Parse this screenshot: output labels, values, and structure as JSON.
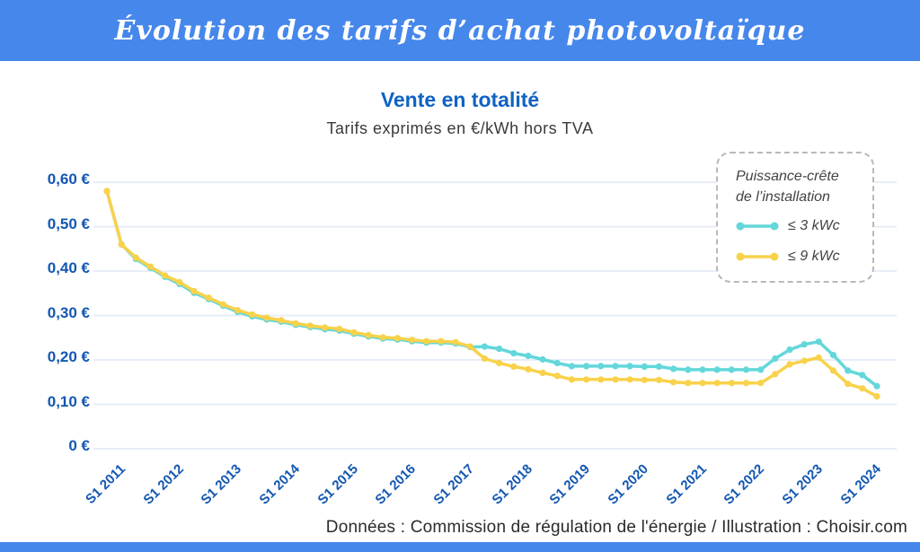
{
  "header": {
    "title": "Évolution des tarifs d’achat photovoltaïque"
  },
  "chart": {
    "title": "Vente en totalité",
    "subtitle": "Tarifs exprimés en €/kWh hors TVA"
  },
  "legend": {
    "title_line1": "Puissance-crête",
    "title_line2": "de l’installation",
    "items": [
      {
        "label": "≤ 3 kWc",
        "color": "#63d7da"
      },
      {
        "label": "≤ 9 kWc",
        "color": "#f8d24b"
      }
    ]
  },
  "footer": {
    "credit": "Données : Commission de régulation de l'énergie / Illustration : Choisir.com"
  },
  "colors": {
    "banner_blue": "#4687ec",
    "title_blue": "#0f63c4",
    "axis_label_blue": "#1257b2",
    "grid": "#e7edf8",
    "series_3kwc": "#63d7da",
    "series_9kwc": "#f8d24b"
  },
  "chart_data": {
    "type": "line",
    "title": "Vente en totalité",
    "subtitle": "Tarifs exprimés en €/kWh hors TVA",
    "y_unit": "€/kWh hors TVA",
    "x_note": "quarterly tariff revisions, from S1 2011 to S1 2024 (last point mid-2024); only first-semester ticks are labelled",
    "points_per_year": 4,
    "x_tick_labels": [
      "S1 2011",
      "S1 2012",
      "S1 2013",
      "S1 2014",
      "S1 2015",
      "S1 2016",
      "S1 2017",
      "S1 2018",
      "S1 2019",
      "S1 2020",
      "S1 2021",
      "S1 2022",
      "S1 2023",
      "S1 2024"
    ],
    "y_tick_labels": [
      "0 €",
      "0,10 €",
      "0,20 €",
      "0,30 €",
      "0,40 €",
      "0,50 €",
      "0,60 €"
    ],
    "ylim": [
      0,
      0.62
    ],
    "grid": "horizontal",
    "legend_position": "top-right",
    "series": [
      {
        "name": "≤ 3 kWc",
        "color": "#63d7da",
        "values": [
          0.58,
          0.46,
          0.427,
          0.407,
          0.387,
          0.371,
          0.351,
          0.337,
          0.322,
          0.308,
          0.298,
          0.291,
          0.286,
          0.279,
          0.274,
          0.269,
          0.266,
          0.259,
          0.253,
          0.248,
          0.246,
          0.242,
          0.239,
          0.239,
          0.237,
          0.229,
          0.23,
          0.225,
          0.215,
          0.209,
          0.201,
          0.193,
          0.186,
          0.186,
          0.186,
          0.186,
          0.186,
          0.185,
          0.185,
          0.18,
          0.178,
          0.178,
          0.178,
          0.178,
          0.178,
          0.178,
          0.203,
          0.223,
          0.235,
          0.241,
          0.211,
          0.176,
          0.166,
          0.141
        ]
      },
      {
        "name": "≤ 9 kWc",
        "color": "#f8d24b",
        "values": [
          0.58,
          0.46,
          0.43,
          0.41,
          0.39,
          0.375,
          0.355,
          0.34,
          0.325,
          0.312,
          0.302,
          0.295,
          0.289,
          0.282,
          0.277,
          0.273,
          0.27,
          0.262,
          0.256,
          0.251,
          0.249,
          0.245,
          0.242,
          0.242,
          0.24,
          0.23,
          0.203,
          0.193,
          0.185,
          0.179,
          0.171,
          0.164,
          0.156,
          0.156,
          0.156,
          0.156,
          0.156,
          0.155,
          0.155,
          0.15,
          0.148,
          0.148,
          0.148,
          0.148,
          0.148,
          0.148,
          0.168,
          0.19,
          0.198,
          0.205,
          0.176,
          0.146,
          0.136,
          0.118
        ]
      }
    ]
  }
}
